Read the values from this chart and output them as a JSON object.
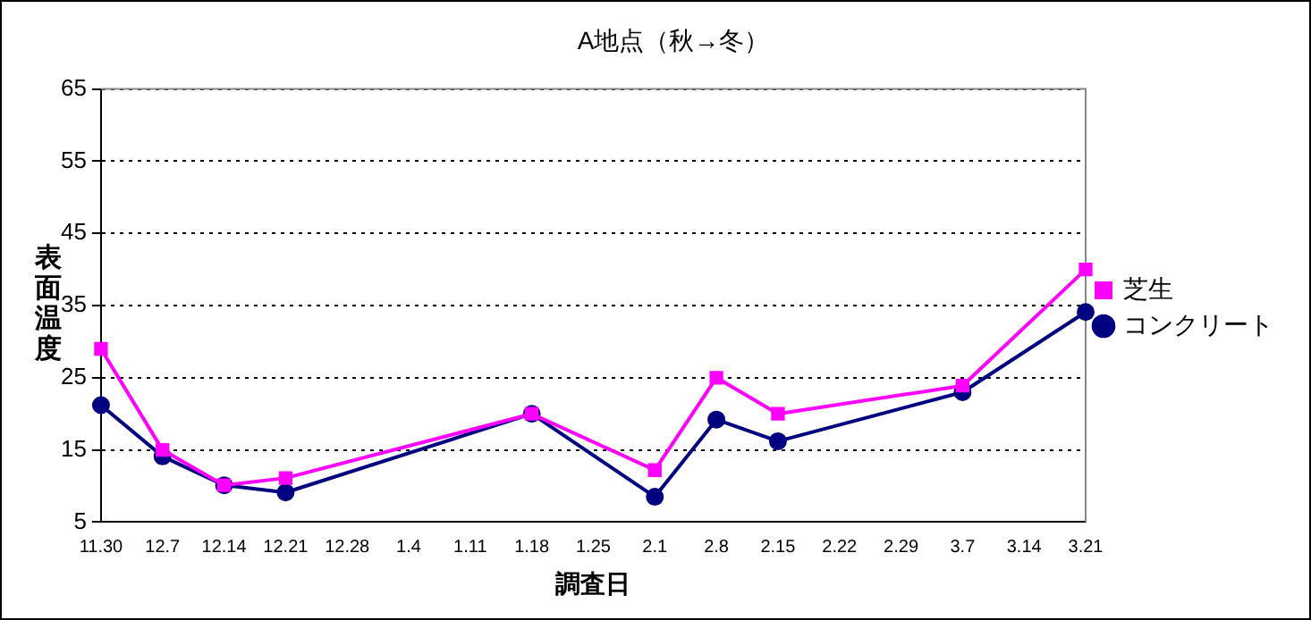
{
  "chart_data": {
    "type": "line",
    "title": "A地点（秋→冬）",
    "xlabel": "調査日",
    "ylabel": "表面温度",
    "categories": [
      "11.30",
      "12.7",
      "12.14",
      "12.21",
      "12.28",
      "1.4",
      "1.11",
      "1.18",
      "1.25",
      "2.1",
      "2.8",
      "2.15",
      "2.22",
      "2.29",
      "3.7",
      "3.14",
      "3.21"
    ],
    "series": [
      {
        "name": "コンクリート",
        "color": "#000080",
        "marker": "circle",
        "values": [
          21.2,
          14.1,
          10.1,
          9.1,
          null,
          null,
          null,
          20,
          null,
          8.5,
          19.2,
          16.2,
          null,
          null,
          23,
          null,
          34.1
        ]
      },
      {
        "name": "芝生",
        "color": "#ff00ff",
        "marker": "square",
        "values": [
          29,
          15,
          10.1,
          11.1,
          null,
          null,
          null,
          20,
          null,
          12.2,
          25,
          20,
          null,
          null,
          23.9,
          null,
          40
        ]
      }
    ],
    "ylim": [
      5,
      65
    ],
    "yticks": [
      5,
      15,
      25,
      35,
      45,
      55,
      65
    ],
    "grid": "y",
    "legend": "right",
    "line_style": "solid"
  }
}
